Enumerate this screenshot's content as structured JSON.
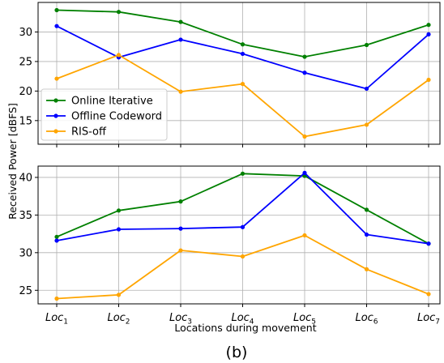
{
  "caption": "(b)",
  "chart_data": {
    "type": "line",
    "xlabel": "Locations during movement",
    "ylabel": "Received Power [dBFS]",
    "categories": [
      {
        "base": "Loc",
        "sub": "1"
      },
      {
        "base": "Loc",
        "sub": "2"
      },
      {
        "base": "Loc",
        "sub": "3"
      },
      {
        "base": "Loc",
        "sub": "4"
      },
      {
        "base": "Loc",
        "sub": "5"
      },
      {
        "base": "Loc",
        "sub": "6"
      },
      {
        "base": "Loc",
        "sub": "7"
      }
    ],
    "legend": {
      "placement": "lower-left",
      "panel": "top"
    },
    "colors": {
      "Online Iterative": "#008000",
      "Offline Codeword": "#0000ff",
      "RIS-off": "#ffa500"
    },
    "grid": true,
    "panels": [
      {
        "name": "top",
        "ylim": [
          11,
          35
        ],
        "yticks": [
          15,
          20,
          25,
          30
        ],
        "series": [
          {
            "name": "Online Iterative",
            "values": [
              33.7,
              33.4,
              31.7,
              27.9,
              25.8,
              27.8,
              31.2
            ]
          },
          {
            "name": "Offline Codeword",
            "values": [
              31.0,
              25.7,
              28.7,
              26.3,
              23.1,
              20.4,
              29.6
            ]
          },
          {
            "name": "RIS-off",
            "values": [
              22.1,
              26.1,
              19.9,
              21.2,
              12.3,
              14.3,
              21.9
            ]
          }
        ]
      },
      {
        "name": "bottom",
        "ylim": [
          23.2,
          41.5
        ],
        "yticks": [
          25,
          30,
          35,
          40
        ],
        "series": [
          {
            "name": "Online Iterative",
            "values": [
              32.1,
              35.6,
              36.8,
              40.5,
              40.2,
              35.7,
              31.2
            ]
          },
          {
            "name": "Offline Codeword",
            "values": [
              31.6,
              33.1,
              33.2,
              33.4,
              40.6,
              32.4,
              31.2
            ]
          },
          {
            "name": "RIS-off",
            "values": [
              23.9,
              24.4,
              30.3,
              29.5,
              32.3,
              27.8,
              24.5
            ]
          }
        ]
      }
    ]
  }
}
